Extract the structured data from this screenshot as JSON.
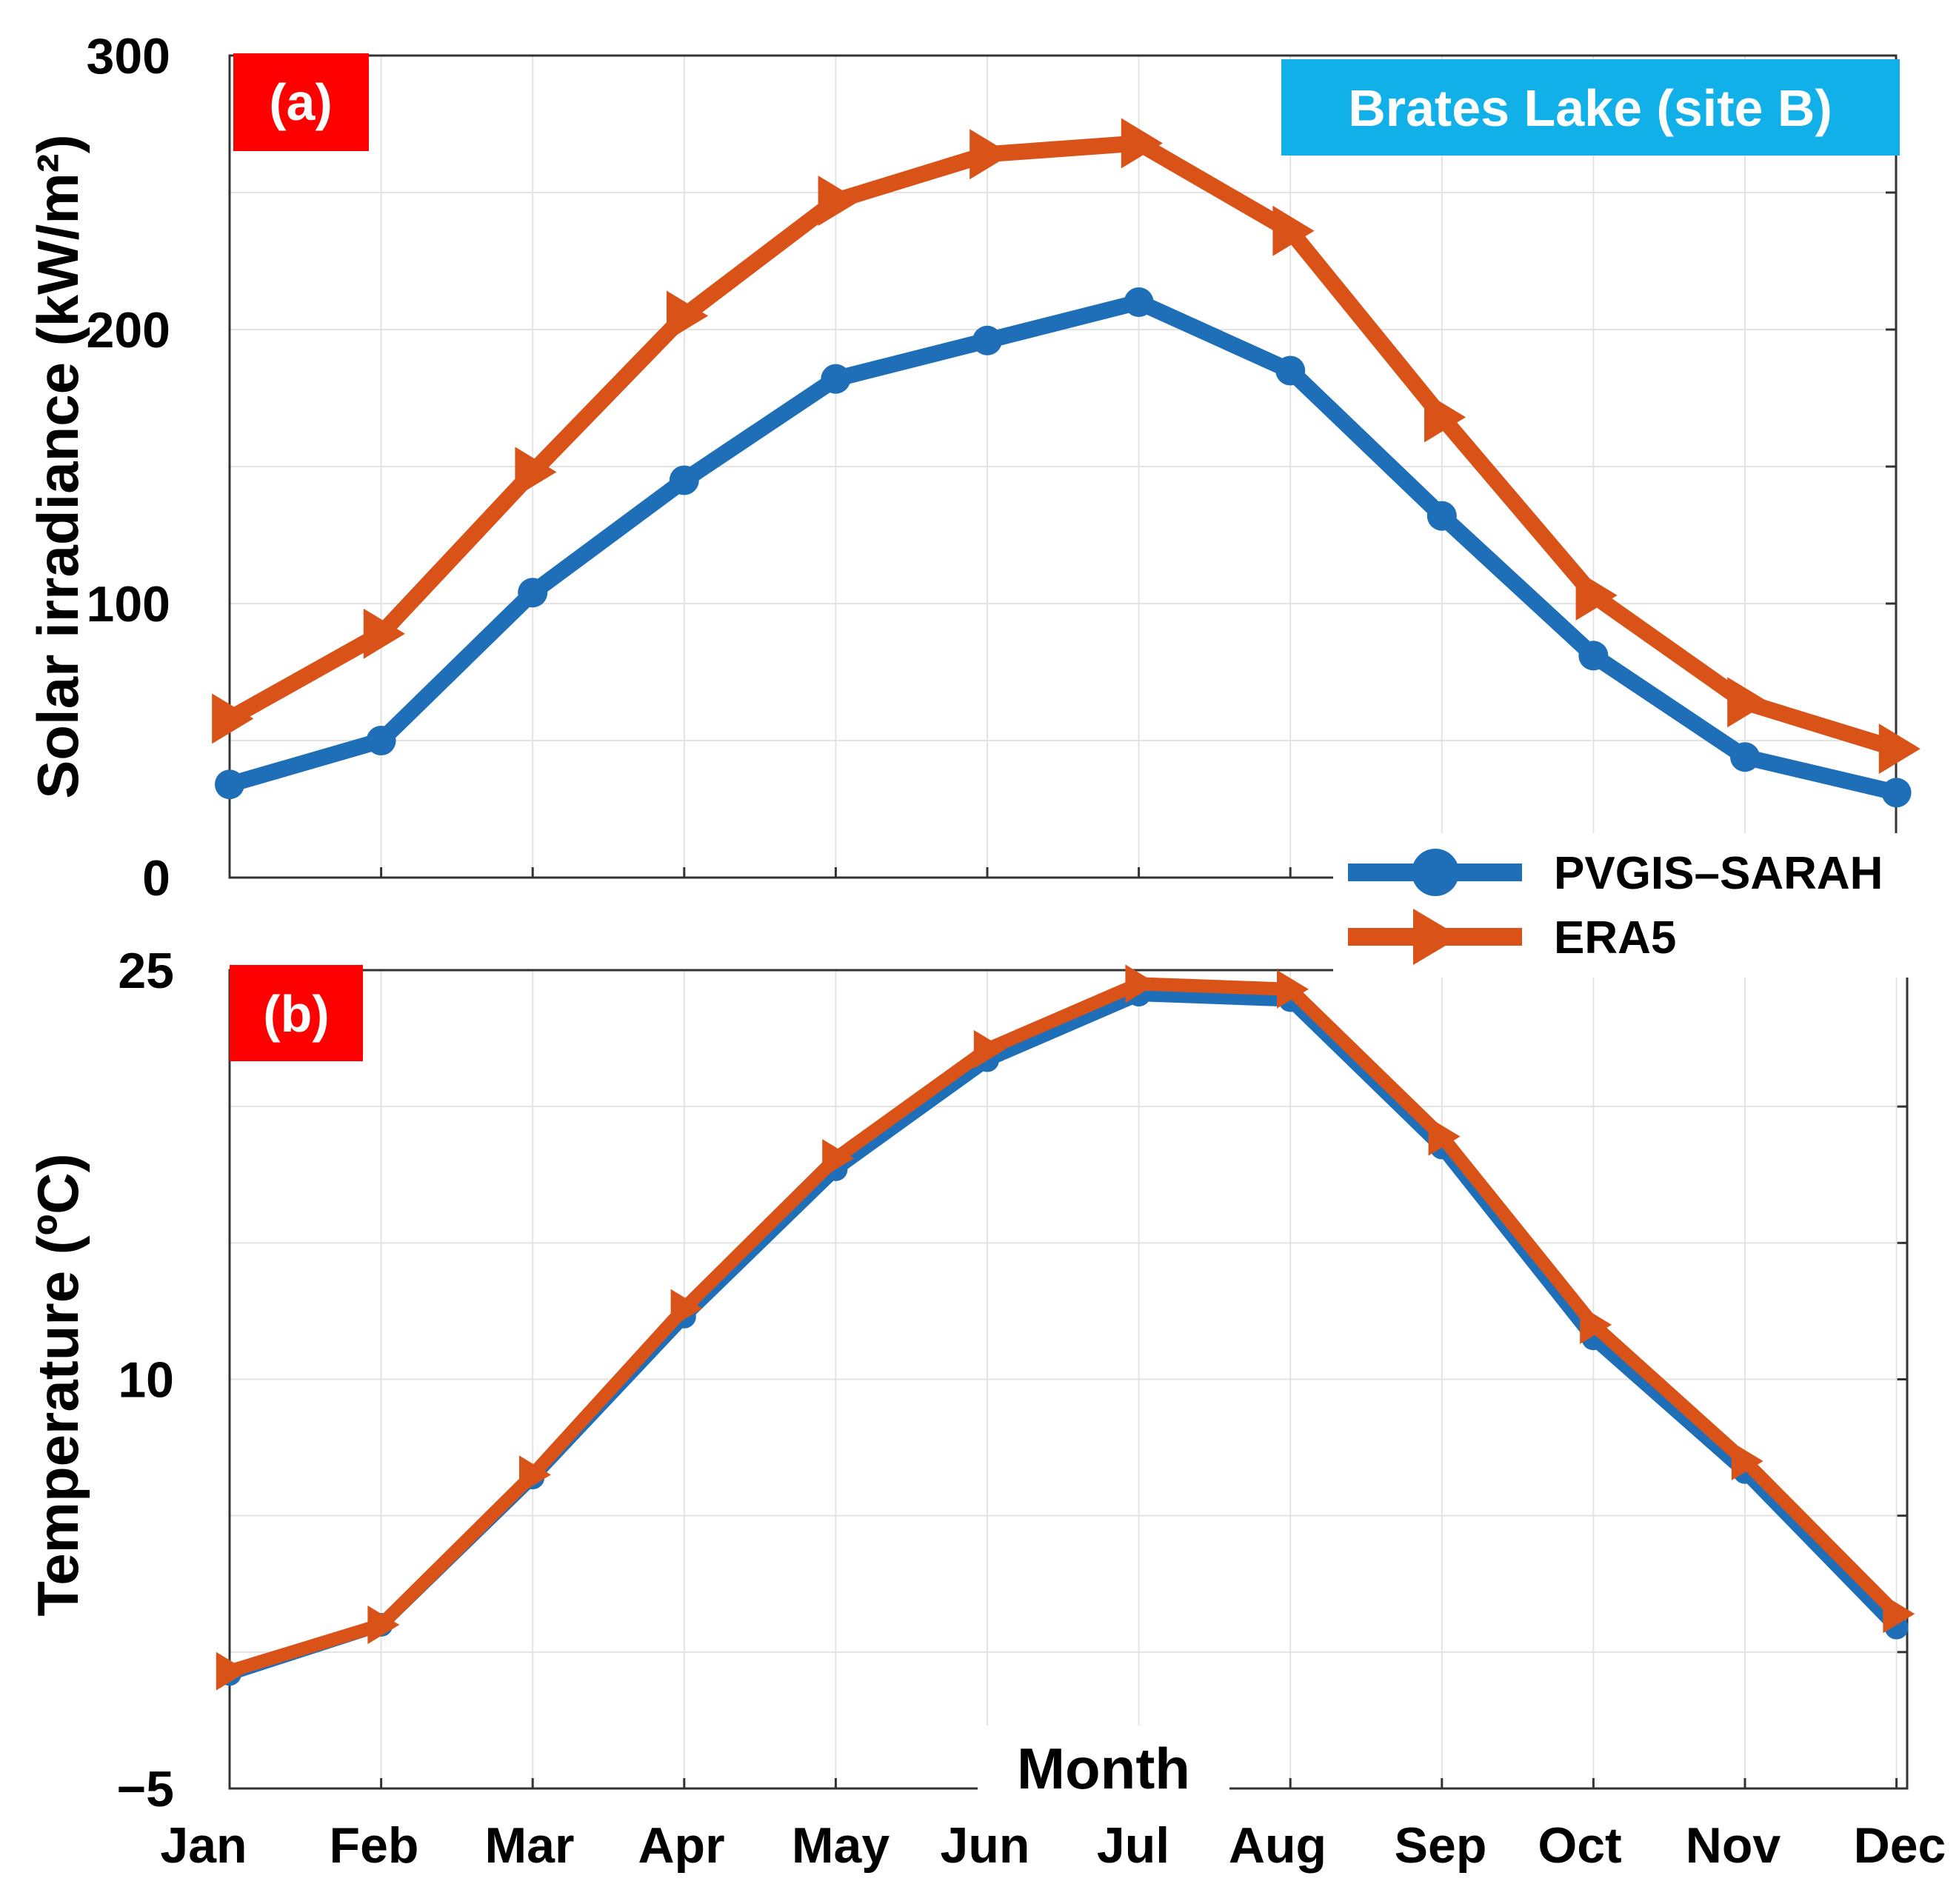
{
  "chart_data": [
    {
      "panel_label": "(a)",
      "type": "line",
      "site_label": "Brates Lake (site B)",
      "ylabel": "Solar irradiance (kW/m²)",
      "ylim": [
        0,
        300
      ],
      "yticks": [
        0,
        100,
        200,
        300
      ],
      "grid": true,
      "categories": [
        "Jan",
        "Feb",
        "Mar",
        "Apr",
        "May",
        "Jun",
        "Jul",
        "Aug",
        "Sep",
        "Oct",
        "Nov",
        "Dec"
      ],
      "series": [
        {
          "name": "PVGIS–SARAH",
          "color": "#1f6fb8",
          "marker": "circle",
          "values": [
            34,
            50,
            104,
            145,
            182,
            196,
            210,
            185,
            132,
            81,
            44,
            31
          ]
        },
        {
          "name": "ERA5",
          "color": "#d95319",
          "marker": "triangle-right",
          "values": [
            58,
            89,
            148,
            205,
            247,
            264,
            268,
            236,
            168,
            103,
            64,
            47
          ]
        }
      ]
    },
    {
      "panel_label": "(b)",
      "type": "line",
      "ylabel": "Temperature (ºC)",
      "xlabel": "Month",
      "ylim": [
        -5,
        25
      ],
      "yticks": [
        -5,
        10,
        25
      ],
      "ytick_labels": [
        "−5",
        "10",
        "25"
      ],
      "grid": true,
      "categories": [
        "Jan",
        "Feb",
        "Mar",
        "Apr",
        "May",
        "Jun",
        "Jul",
        "Aug",
        "Sep",
        "Oct",
        "Nov",
        "Dec"
      ],
      "series": [
        {
          "name": "PVGIS–SARAH",
          "color": "#1f6fb8",
          "marker": "circle",
          "values": [
            -0.8,
            1.0,
            6.4,
            12.3,
            17.7,
            21.7,
            24.1,
            23.9,
            18.5,
            11.5,
            6.6,
            0.9
          ]
        },
        {
          "name": "ERA5",
          "color": "#d95319",
          "marker": "triangle-right",
          "values": [
            -0.7,
            1.0,
            6.5,
            12.6,
            18.1,
            22.1,
            24.5,
            24.3,
            18.9,
            12.0,
            7.0,
            1.4
          ]
        }
      ]
    }
  ],
  "legend": {
    "items": [
      {
        "label": "PVGIS–SARAH",
        "color": "#1f6fb8",
        "marker": "circle"
      },
      {
        "label": "ERA5",
        "color": "#d95319",
        "marker": "triangle-right"
      }
    ]
  },
  "colors": {
    "tag_background": "#ff0000",
    "site_background": "#12b0e8"
  }
}
